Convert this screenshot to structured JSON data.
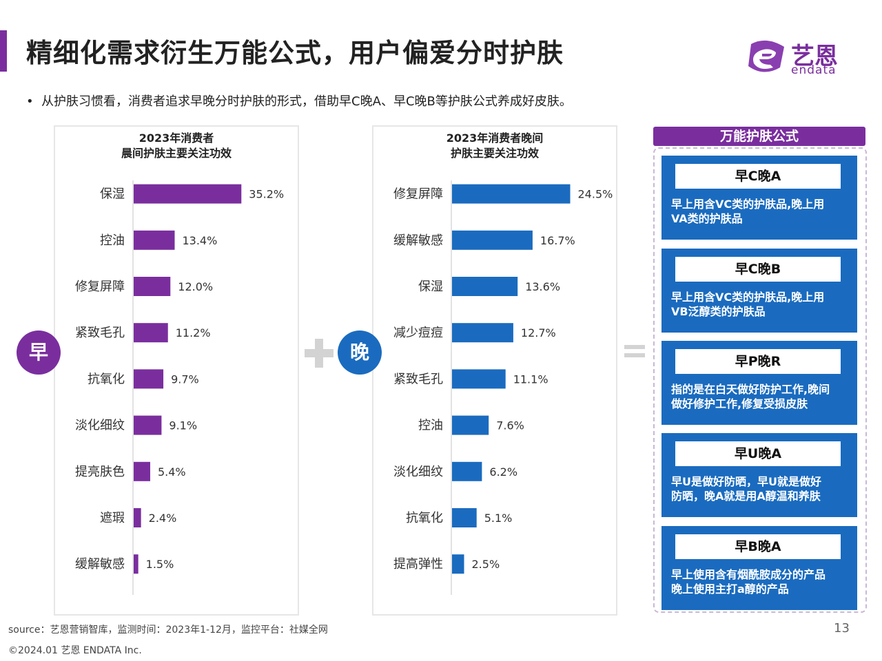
{
  "header": {
    "title": "精细化需求衍生万能公式，用户偏爱分时护肤",
    "logo_cn": "艺恩",
    "logo_en": "endata"
  },
  "bullet": "从护肤习惯看，消费者追求早晚分时护肤的形式，借助早C晚A、早C晚B等护肤公式养成好皮肤。",
  "colors": {
    "purple": "#7a2e9e",
    "blue": "#1a6bbf"
  },
  "morning_badge": "早",
  "evening_badge": "晚",
  "chart_data": [
    {
      "type": "bar",
      "orientation": "horizontal",
      "title_line1": "2023年消费者",
      "title_line2": "晨间护肤主要关注功效",
      "categories": [
        "保湿",
        "控油",
        "修复屏障",
        "紧致毛孔",
        "抗氧化",
        "淡化细纹",
        "提亮肤色",
        "遮瑕",
        "缓解敏感"
      ],
      "values": [
        35.2,
        13.4,
        12.0,
        11.2,
        9.7,
        9.1,
        5.4,
        2.4,
        1.5
      ],
      "labels": [
        "35.2%",
        "13.4%",
        "12.0%",
        "11.2%",
        "9.7%",
        "9.1%",
        "5.4%",
        "2.4%",
        "1.5%"
      ],
      "unit": "%",
      "color": "#7a2e9e"
    },
    {
      "type": "bar",
      "orientation": "horizontal",
      "title_line1": "2023年消费者晚间",
      "title_line2": "护肤主要关注功效",
      "categories": [
        "修复屏障",
        "缓解敏感",
        "保湿",
        "减少痘痘",
        "紧致毛孔",
        "控油",
        "淡化细纹",
        "抗氧化",
        "提高弹性"
      ],
      "values": [
        24.5,
        16.7,
        13.6,
        12.7,
        11.1,
        7.6,
        6.2,
        5.1,
        2.5
      ],
      "labels": [
        "24.5%",
        "16.7%",
        "13.6%",
        "12.7%",
        "11.1%",
        "7.6%",
        "6.2%",
        "5.1%",
        "2.5%"
      ],
      "unit": "%",
      "color": "#1a6bbf"
    }
  ],
  "formulas": {
    "header": "万能护肤公式",
    "cards": [
      {
        "title": "早C晚A",
        "line1": "早上用含VC类的护肤品,晚上用",
        "line2": "VA类的护肤品"
      },
      {
        "title": "早C晚B",
        "line1": "早上用含VC类的护肤品,晚上用",
        "line2": "VB泛醇类的护肤品"
      },
      {
        "title": "早P晚R",
        "line1": "指的是在白天做好防护工作,晚间",
        "line2": "做好修护工作,修复受损皮肤"
      },
      {
        "title": "早U晚A",
        "line1": "早U是做好防晒，早U就是做好",
        "line2": "防晒，晚A就是用A醇温和养肤"
      },
      {
        "title": "早B晚A",
        "line1": "早上使用含有烟酰胺成分的产品",
        "line2": "晚上使用主打a醇的产品"
      }
    ]
  },
  "footer": {
    "source": "source：艺恩营销智库，监测时间：2023年1-12月，监控平台：社媒全网",
    "copyright": "©2024.01 艺恩 ENDATA Inc.",
    "page": "13"
  }
}
